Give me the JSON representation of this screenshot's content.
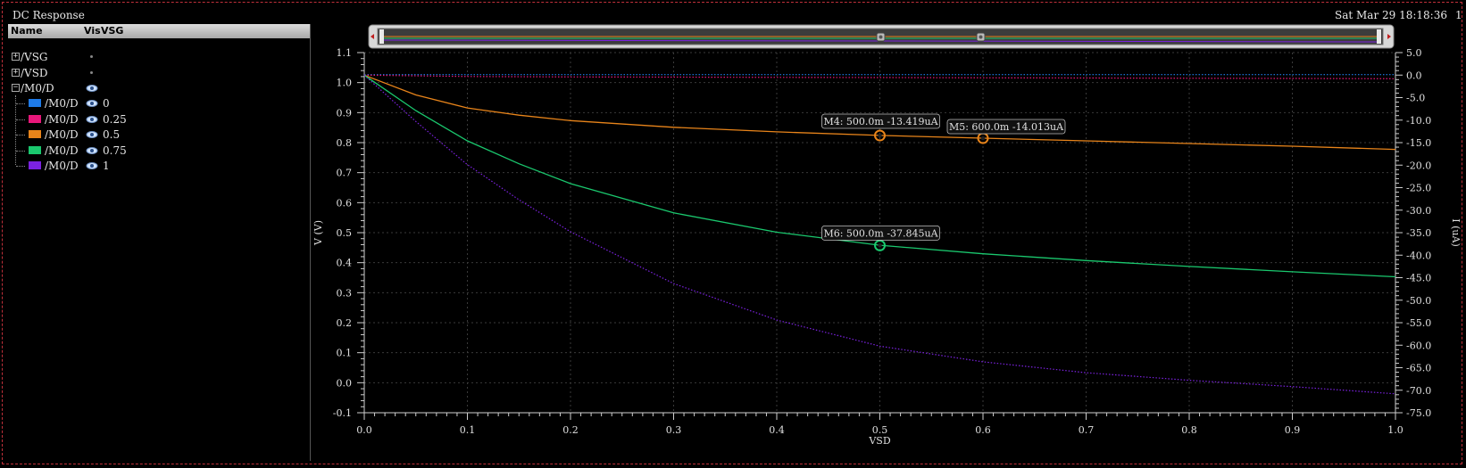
{
  "app": {
    "title": "DC Response",
    "timestamp": "Sat Mar 29 18:18:36",
    "page": "1"
  },
  "browser": {
    "columns": {
      "name": "Name",
      "vis": "Vis",
      "param": "VSG"
    },
    "groups": [
      {
        "label": "/VSG",
        "expander": "+"
      },
      {
        "label": "/VSD",
        "expander": "+"
      },
      {
        "label": "/M0/D",
        "expander": "−"
      }
    ],
    "traces": [
      {
        "label": "/M0/D",
        "value": "0",
        "color": "#1e7be8"
      },
      {
        "label": "/M0/D",
        "value": "0.25",
        "color": "#e8177a"
      },
      {
        "label": "/M0/D",
        "value": "0.5",
        "color": "#e8841a"
      },
      {
        "label": "/M0/D",
        "value": "0.75",
        "color": "#1ac86e"
      },
      {
        "label": "/M0/D",
        "value": "1",
        "color": "#7b22e0"
      }
    ]
  },
  "chart_data": {
    "type": "line",
    "xlabel": "VSD",
    "ylabel_left": "V (V)",
    "ylabel_right": "I (uA)",
    "xlim": [
      0.0,
      1.0
    ],
    "ylim_left": [
      -0.1,
      1.1
    ],
    "ylim_right": [
      -75.0,
      5.0
    ],
    "grid": true,
    "x_ticks": [
      "0.0",
      "0.1",
      "0.2",
      "0.3",
      "0.4",
      "0.5",
      "0.6",
      "0.7",
      "0.8",
      "0.9",
      "1.0"
    ],
    "y_left_ticks": [
      "1.1",
      "1.0",
      "0.9",
      "0.8",
      "0.7",
      "0.6",
      "0.5",
      "0.4",
      "0.3",
      "0.2",
      "0.1",
      "0.0",
      "-0.1"
    ],
    "y_right_ticks": [
      "5.0",
      "0.0",
      "-5.0",
      "-10.0",
      "-15.0",
      "-20.0",
      "-25.0",
      "-30.0",
      "-35.0",
      "-40.0",
      "-45.0",
      "-50.0",
      "-55.0",
      "-60.0",
      "-65.0",
      "-70.0",
      "-75.0"
    ],
    "series": [
      {
        "name": "/M0/D 0",
        "color": "#1e7be8",
        "axis": "right",
        "style": "dotted",
        "x": [
          0.0,
          0.1,
          0.2,
          0.3,
          0.4,
          0.5,
          0.6,
          0.7,
          0.8,
          0.9,
          1.0
        ],
        "y": [
          0.1,
          0.1,
          0.1,
          0.1,
          0.1,
          0.1,
          0.1,
          0.1,
          0.1,
          0.1,
          0.1
        ]
      },
      {
        "name": "/M0/D 0.25",
        "color": "#e8177a",
        "axis": "right",
        "style": "dotted",
        "x": [
          0.0,
          0.1,
          0.2,
          0.3,
          0.4,
          0.5,
          0.6,
          0.7,
          0.8,
          0.9,
          1.0
        ],
        "y": [
          0.0,
          -0.3,
          -0.4,
          -0.45,
          -0.5,
          -0.55,
          -0.6,
          -0.65,
          -0.7,
          -0.75,
          -0.8
        ]
      },
      {
        "name": "/M0/D 0.5",
        "color": "#e8841a",
        "axis": "right",
        "style": "solid",
        "x": [
          0.0,
          0.05,
          0.1,
          0.15,
          0.2,
          0.3,
          0.4,
          0.5,
          0.6,
          0.7,
          0.8,
          0.9,
          1.0
        ],
        "y": [
          0.0,
          -4.4,
          -7.3,
          -8.9,
          -10.1,
          -11.6,
          -12.6,
          -13.4,
          -14.0,
          -14.6,
          -15.2,
          -15.8,
          -16.5
        ]
      },
      {
        "name": "/M0/D 0.75",
        "color": "#1ac86e",
        "axis": "right",
        "style": "solid",
        "x": [
          0.0,
          0.05,
          0.1,
          0.15,
          0.2,
          0.3,
          0.4,
          0.5,
          0.6,
          0.7,
          0.8,
          0.9,
          1.0
        ],
        "y": [
          0.0,
          -7.9,
          -14.6,
          -19.7,
          -24.1,
          -30.6,
          -34.9,
          -37.8,
          -39.7,
          -41.2,
          -42.5,
          -43.7,
          -44.8
        ]
      },
      {
        "name": "/M0/D 1",
        "color": "#7b22e0",
        "axis": "right",
        "style": "dotted",
        "x": [
          0.0,
          0.05,
          0.1,
          0.15,
          0.2,
          0.3,
          0.4,
          0.5,
          0.6,
          0.7,
          0.8,
          0.9,
          1.0
        ],
        "y": [
          0.0,
          -10.3,
          -19.9,
          -27.7,
          -34.8,
          -46.3,
          -54.4,
          -60.2,
          -63.7,
          -66.1,
          -67.8,
          -69.2,
          -70.8
        ]
      }
    ],
    "markers": [
      {
        "name": "M4",
        "label": "M4: 500.0m -13.419uA",
        "x": 0.5,
        "y": -13.419,
        "color": "#e8841a"
      },
      {
        "name": "M5",
        "label": "M5: 600.0m -14.013uA",
        "x": 0.6,
        "y": -14.013,
        "color": "#e8841a"
      },
      {
        "name": "M6",
        "label": "M6: 500.0m -37.845uA",
        "x": 0.5,
        "y": -37.845,
        "color": "#1ac86e"
      }
    ]
  }
}
